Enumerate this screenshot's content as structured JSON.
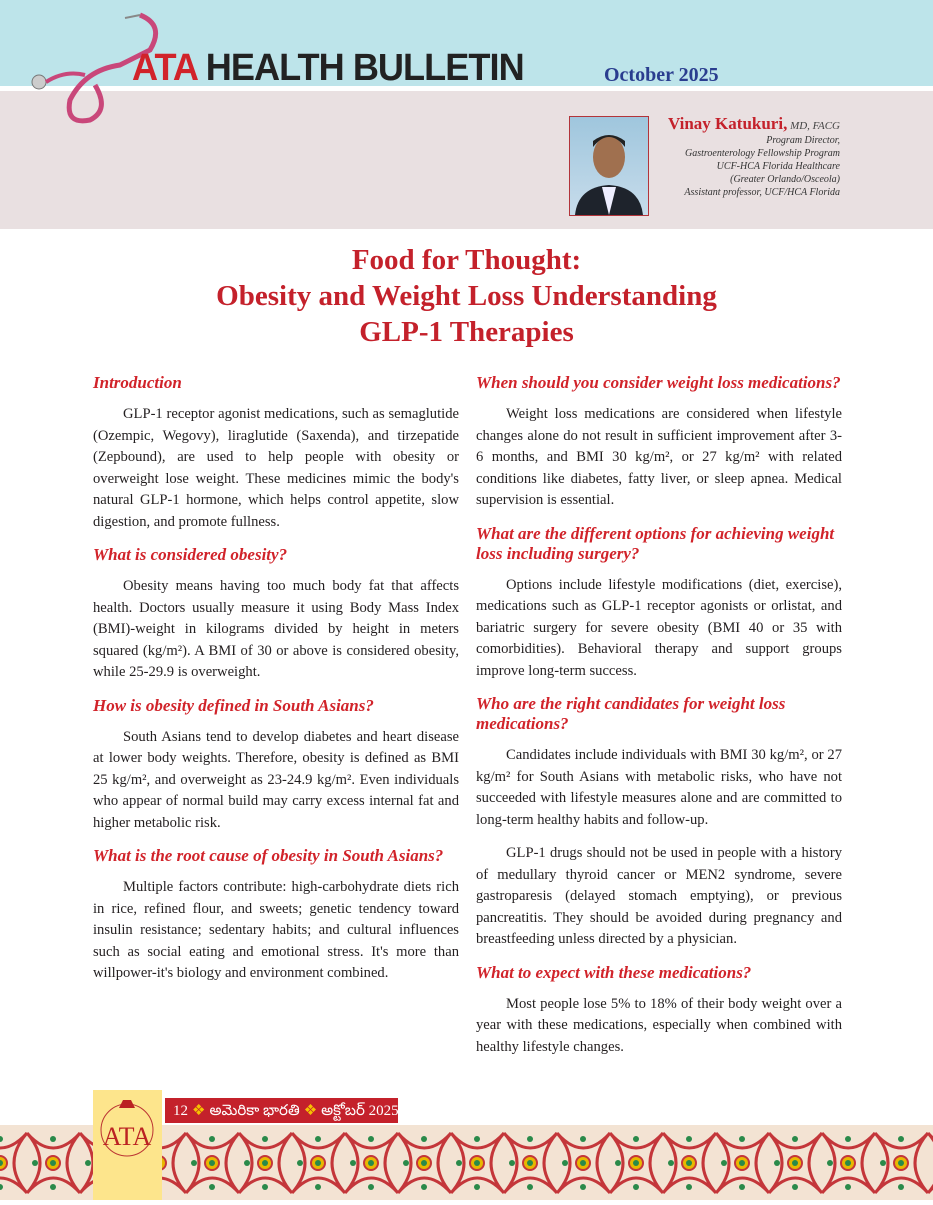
{
  "header": {
    "brand_accent": "ATA",
    "brand_rest": " HEALTH BULLETIN",
    "issue": "October 2025"
  },
  "author": {
    "name": "Vinay Katukuri,",
    "credentials": " MD, FACG",
    "lines": [
      "Program Director,",
      "Gastroenterology Fellowship Program",
      "UCF-HCA Florida Healthcare",
      "(Greater Orlando/Osceola)",
      "Assistant professor, UCF/HCA Florida"
    ]
  },
  "title": [
    "Food for Thought:",
    "Obesity and Weight Loss Understanding",
    "GLP-1 Therapies"
  ],
  "left": [
    {
      "h": "Introduction",
      "p": [
        "GLP-1 receptor agonist medications, such as semaglutide (Ozempic, Wegovy), liraglutide (Saxenda), and tirzepatide (Zepbound), are used to help people with obesity or overweight lose weight. These medicines mimic the body's natural GLP-1 hormone, which helps control appetite, slow digestion, and promote fullness."
      ]
    },
    {
      "h": "What is considered obesity?",
      "p": [
        "Obesity means having too much body fat that affects health. Doctors usually measure it using Body Mass Index (BMI)-weight in kilograms divided by height in meters squared (kg/m²). A BMI of 30 or above is considered obesity, while 25-29.9 is overweight."
      ]
    },
    {
      "h": "How is obesity defined in South Asians?",
      "p": [
        "South Asians tend to develop diabetes and heart disease at lower body weights. Therefore, obesity is defined as BMI   25 kg/m², and overweight as 23-24.9 kg/m². Even individuals who appear of normal build may carry excess internal fat and higher metabolic risk."
      ]
    },
    {
      "h": "What is the root cause of obesity in South Asians?",
      "p": [
        "Multiple factors contribute: high-carbohydrate diets rich in rice, refined flour, and sweets; genetic tendency toward insulin resistance; sedentary habits; and cultural influences such as social eating and emotional stress. It's more than willpower-it's biology and environment combined."
      ]
    }
  ],
  "right": [
    {
      "h": "When should you consider weight loss medications?",
      "p": [
        "Weight loss medications are considered when lifestyle changes alone do not result in sufficient improvement after 3-6 months, and BMI   30 kg/m², or 27 kg/m² with related conditions like diabetes, fatty liver, or sleep apnea. Medical supervision is essential."
      ]
    },
    {
      "h": "What are the different options for achieving weight loss including surgery?",
      "p": [
        "Options include lifestyle modifications (diet, exercise), medications such as GLP-1 receptor agonists or orlistat, and bariatric surgery for severe obesity (BMI 40 or   35 with comorbidities). Behavioral therapy and support groups improve long-term success."
      ]
    },
    {
      "h": "Who are the right candidates for weight loss medications?",
      "p": [
        "Candidates include individuals with BMI  30 kg/m², or  27 kg/m² for South Asians with metabolic risks, who have not succeeded with lifestyle measures alone and are committed to long-term healthy habits and follow-up.",
        "GLP-1 drugs should not be used in people with a history of medullary thyroid cancer or MEN2 syndrome, severe gastroparesis (delayed stomach emptying), or previous pancreatitis. They should be avoided during pregnancy and breastfeeding unless directed by a physician."
      ]
    },
    {
      "h": "What to expect with these medications?",
      "p": [
        "Most people lose 5% to 18% of their body weight over a year with these medications, especially when combined with healthy lifestyle changes."
      ]
    }
  ],
  "footer": {
    "page": "12",
    "magazine": "అమెరికా భారతి",
    "date": "అక్టోబర్ 2025",
    "logo_text": "ATA"
  },
  "colors": {
    "accent": "#c4212b",
    "header_bg": "#bde4ea",
    "band_bg": "#e9e0e1"
  }
}
